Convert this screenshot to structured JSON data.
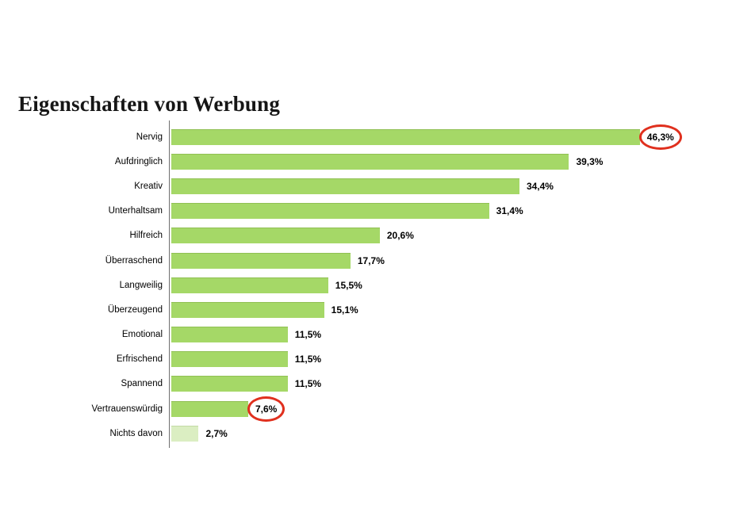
{
  "page": {
    "title": "Eigenschaften von Werbung",
    "background": "#ffffff"
  },
  "chart_data": {
    "type": "bar",
    "orientation": "horizontal",
    "title": "Eigenschaften von Werbung",
    "xlabel": "",
    "ylabel": "",
    "xlim": [
      0,
      50
    ],
    "grid": false,
    "legend": "none",
    "categories": [
      "Nervig",
      "Aufdringlich",
      "Kreativ",
      "Unterhaltsam",
      "Hilfreich",
      "Überraschend",
      "Langweilig",
      "Überzeugend",
      "Emotional",
      "Erfrischend",
      "Spannend",
      "Vertrauenswürdig",
      "Nichts davon"
    ],
    "values": [
      46.3,
      39.3,
      34.4,
      31.4,
      20.6,
      17.7,
      15.5,
      15.1,
      11.5,
      11.5,
      11.5,
      7.6,
      2.7
    ],
    "value_labels": [
      "46,3%",
      "39,3%",
      "34,4%",
      "31,4%",
      "20,6%",
      "17,7%",
      "15,5%",
      "15,1%",
      "11,5%",
      "11,5%",
      "11,5%",
      "7,6%",
      "2,7%"
    ],
    "circled_indices": [
      0,
      11
    ],
    "muted_index": 12,
    "colors": {
      "bar": "#a5d867",
      "bar_muted": "#dbeec2",
      "annotation_ellipse": "#e0301e",
      "axis_line": "#6f6f6f",
      "text": "#000000"
    }
  }
}
